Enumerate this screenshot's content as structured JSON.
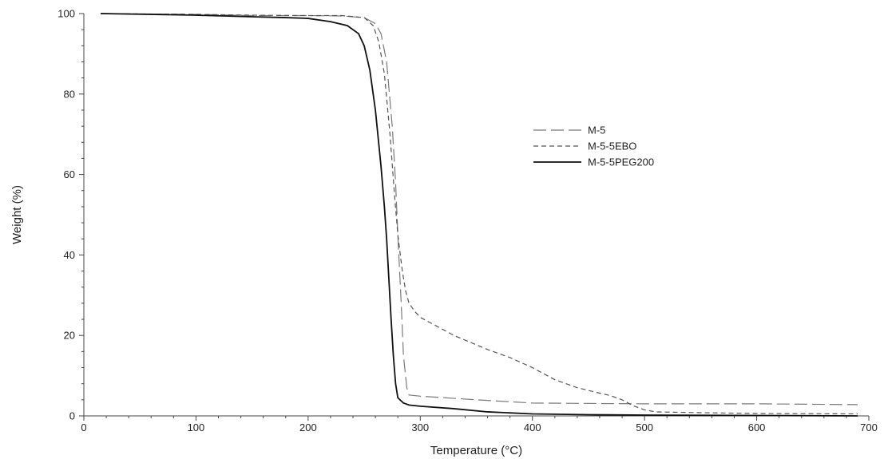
{
  "chart_data": {
    "type": "line",
    "xlabel": "Temperature (°C)",
    "ylabel": "Weight (%)",
    "xlim": [
      0,
      700
    ],
    "ylim": [
      0,
      100
    ],
    "x_ticks": [
      0,
      100,
      200,
      300,
      400,
      500,
      600,
      700
    ],
    "y_ticks": [
      0,
      20,
      40,
      60,
      80,
      100
    ],
    "grid": false,
    "legend_position": "right",
    "series": [
      {
        "name": "M-5",
        "color": "#7a7a7a",
        "dash": "long-dash",
        "x": [
          15,
          100,
          150,
          200,
          230,
          250,
          260,
          265,
          270,
          275,
          278,
          280,
          283,
          285,
          288,
          290,
          300,
          350,
          400,
          500,
          600,
          690
        ],
        "y": [
          100,
          99.8,
          99.5,
          99.5,
          99.4,
          99.0,
          97.5,
          95.0,
          88.0,
          72.0,
          58.0,
          45.0,
          28.0,
          15.0,
          7.0,
          5.2,
          4.9,
          4.0,
          3.2,
          3.0,
          3.0,
          2.8
        ]
      },
      {
        "name": "M-5-5EBO",
        "color": "#555555",
        "dash": "short-dash",
        "x": [
          15,
          100,
          150,
          200,
          230,
          250,
          258,
          263,
          268,
          273,
          277,
          280,
          284,
          287,
          290,
          295,
          300,
          330,
          360,
          380,
          400,
          420,
          440,
          470,
          480,
          490,
          500,
          510,
          550,
          600,
          690
        ],
        "y": [
          100,
          99.8,
          99.6,
          99.5,
          99.5,
          99.0,
          97.0,
          93.0,
          85.0,
          70.0,
          55.0,
          45.0,
          36.0,
          31.0,
          28.0,
          26.0,
          24.5,
          20.0,
          16.5,
          14.5,
          12.0,
          9.0,
          7.0,
          5.0,
          4.0,
          2.5,
          1.5,
          1.0,
          0.8,
          0.6,
          0.5
        ]
      },
      {
        "name": "M-5-5PEG200",
        "color": "#111111",
        "dash": "solid",
        "x": [
          15,
          100,
          150,
          180,
          200,
          220,
          235,
          245,
          250,
          255,
          260,
          265,
          268,
          270,
          272,
          274,
          276,
          278,
          280,
          285,
          290,
          300,
          330,
          360,
          400,
          450,
          500,
          600,
          690
        ],
        "y": [
          100,
          99.6,
          99.2,
          99.0,
          98.8,
          98.0,
          97.0,
          95.0,
          92.0,
          86.0,
          76.0,
          62.0,
          52.0,
          44.0,
          34.0,
          24.0,
          15.0,
          8.0,
          4.5,
          3.2,
          2.7,
          2.4,
          1.8,
          1.0,
          0.5,
          0.3,
          0.2,
          0.1,
          0.0
        ]
      }
    ]
  }
}
